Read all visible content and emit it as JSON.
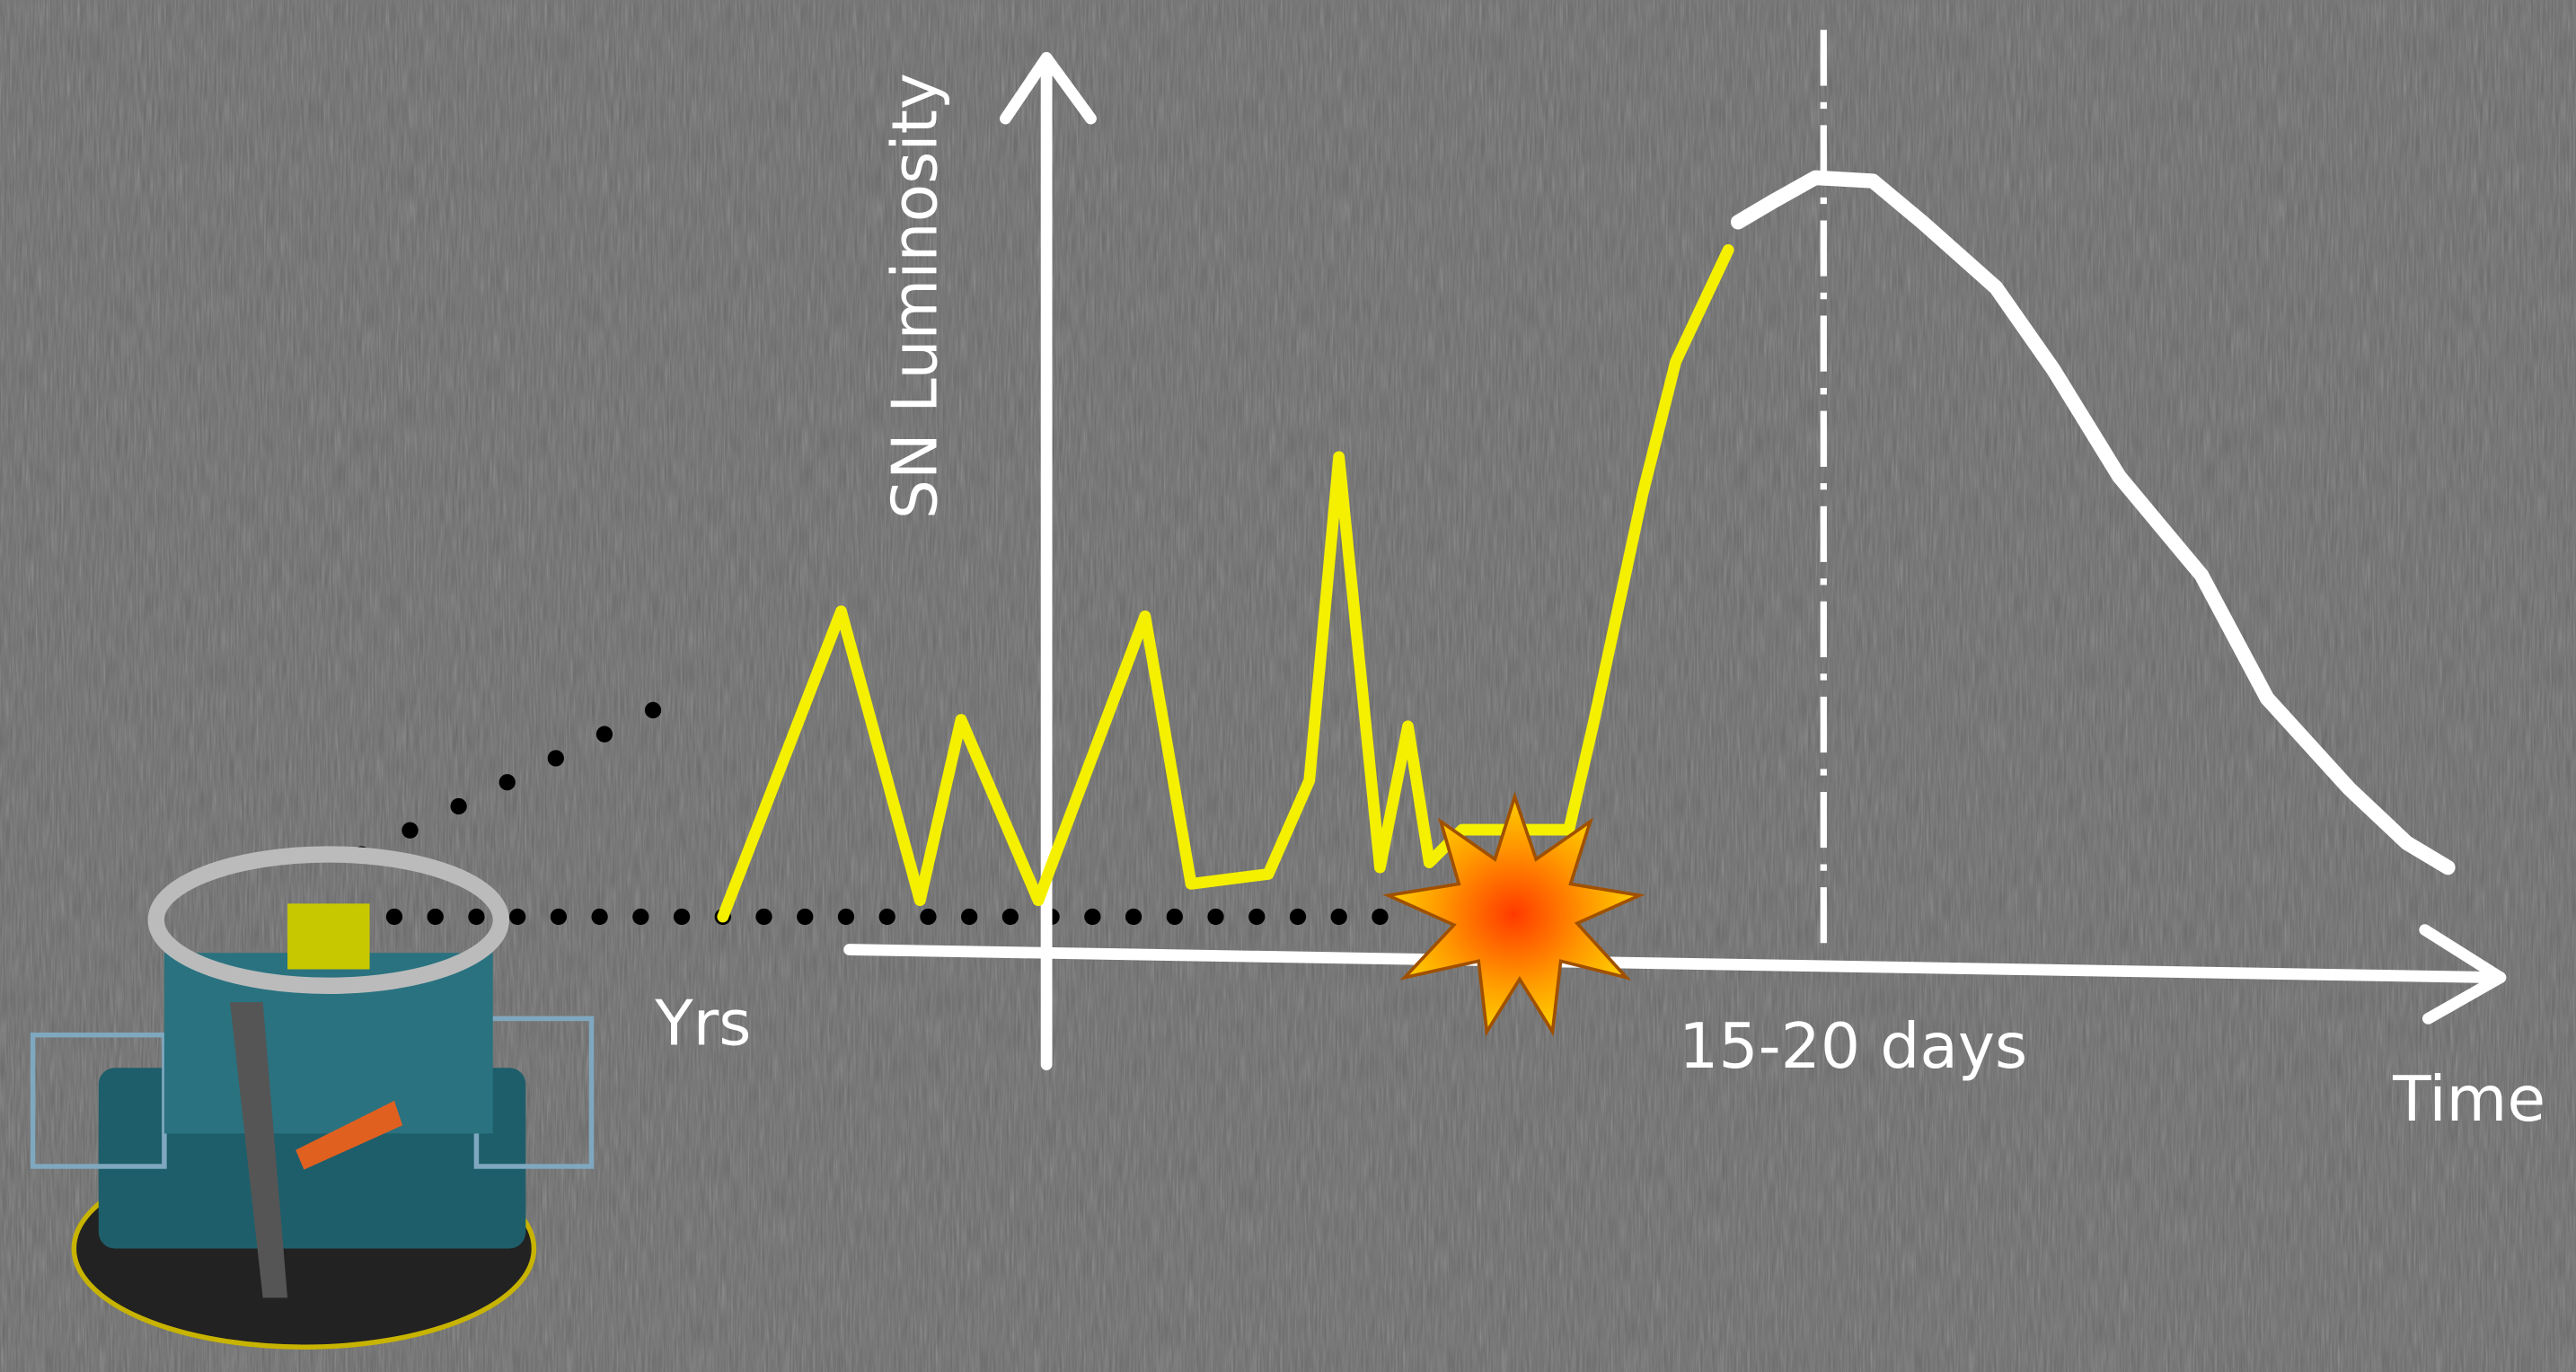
{
  "labels": {
    "y_axis": "SN Luminosity",
    "x_left": "Yrs",
    "interval": "15-20 days",
    "x_axis": "Time"
  }
}
